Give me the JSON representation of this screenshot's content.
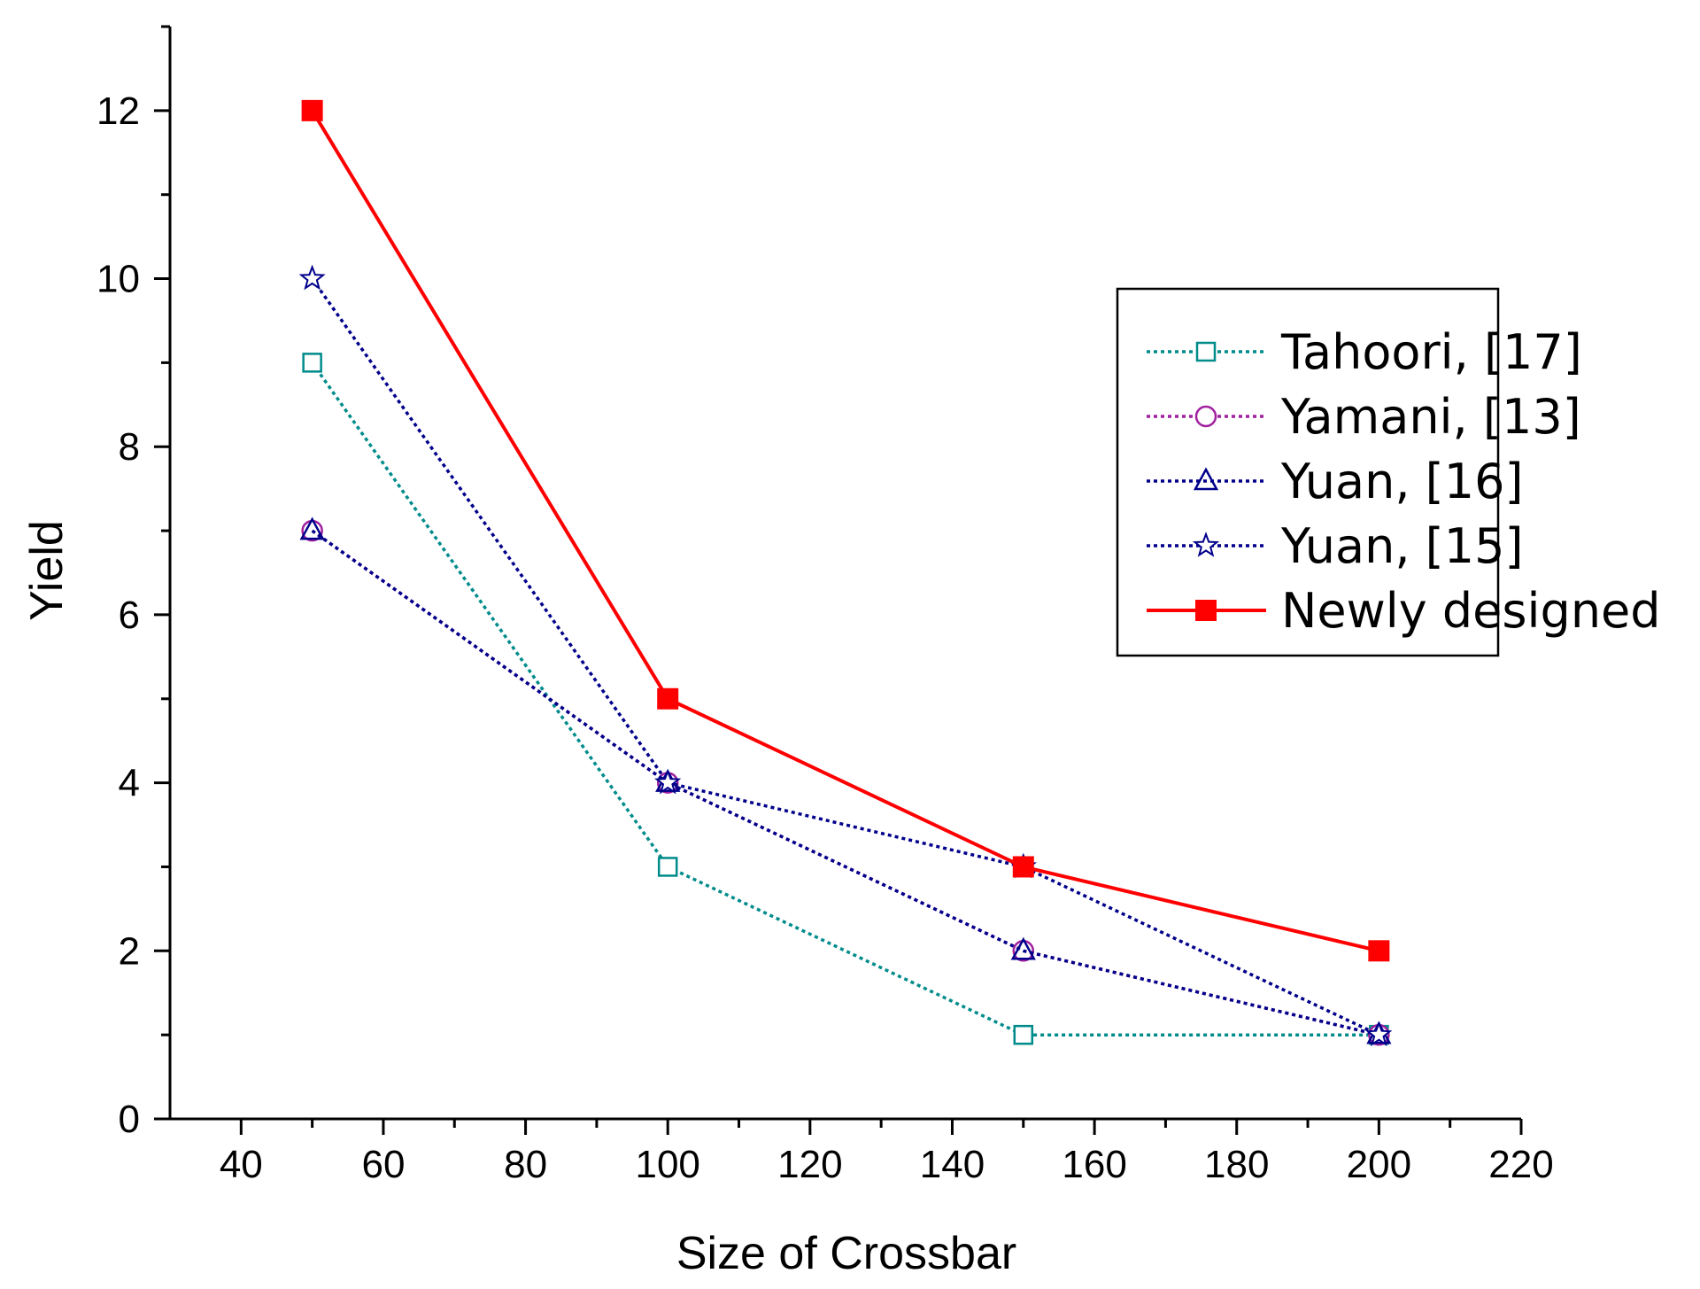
{
  "chart_data": {
    "type": "line",
    "title": "",
    "xlabel": "Size of Crossbar",
    "ylabel": "Yield",
    "xlim": [
      30,
      220
    ],
    "ylim": [
      0,
      13
    ],
    "xticks": [
      40,
      60,
      80,
      100,
      120,
      140,
      160,
      180,
      200,
      220
    ],
    "yticks": [
      0,
      2,
      4,
      6,
      8,
      10,
      12
    ],
    "grid": false,
    "legend_position": "right",
    "series": [
      {
        "name": "Tahoori, [17]",
        "color": "#008B8B",
        "line": "dotted",
        "marker": "square-open",
        "x": [
          50,
          100,
          150,
          200
        ],
        "y": [
          9,
          3,
          1,
          1
        ]
      },
      {
        "name": "Yamani, [13]",
        "color": "#A0209F",
        "line": "dotted",
        "marker": "circle-open",
        "x": [
          50,
          100,
          150,
          200
        ],
        "y": [
          7,
          4,
          2,
          1
        ]
      },
      {
        "name": "Yuan, [16]",
        "color": "#00008B",
        "line": "dotted",
        "marker": "triangle-open",
        "x": [
          50,
          100,
          150,
          200
        ],
        "y": [
          7,
          4,
          2,
          1
        ]
      },
      {
        "name": "Yuan, [15]",
        "color": "#00008B",
        "line": "dotted",
        "marker": "star-open",
        "x": [
          50,
          100,
          150,
          200
        ],
        "y": [
          10,
          4,
          3,
          1
        ]
      },
      {
        "name": "Newly designed",
        "color": "#FF0000",
        "line": "solid",
        "marker": "square-filled",
        "x": [
          50,
          100,
          150,
          200
        ],
        "y": [
          12,
          5,
          3,
          2
        ]
      }
    ]
  }
}
